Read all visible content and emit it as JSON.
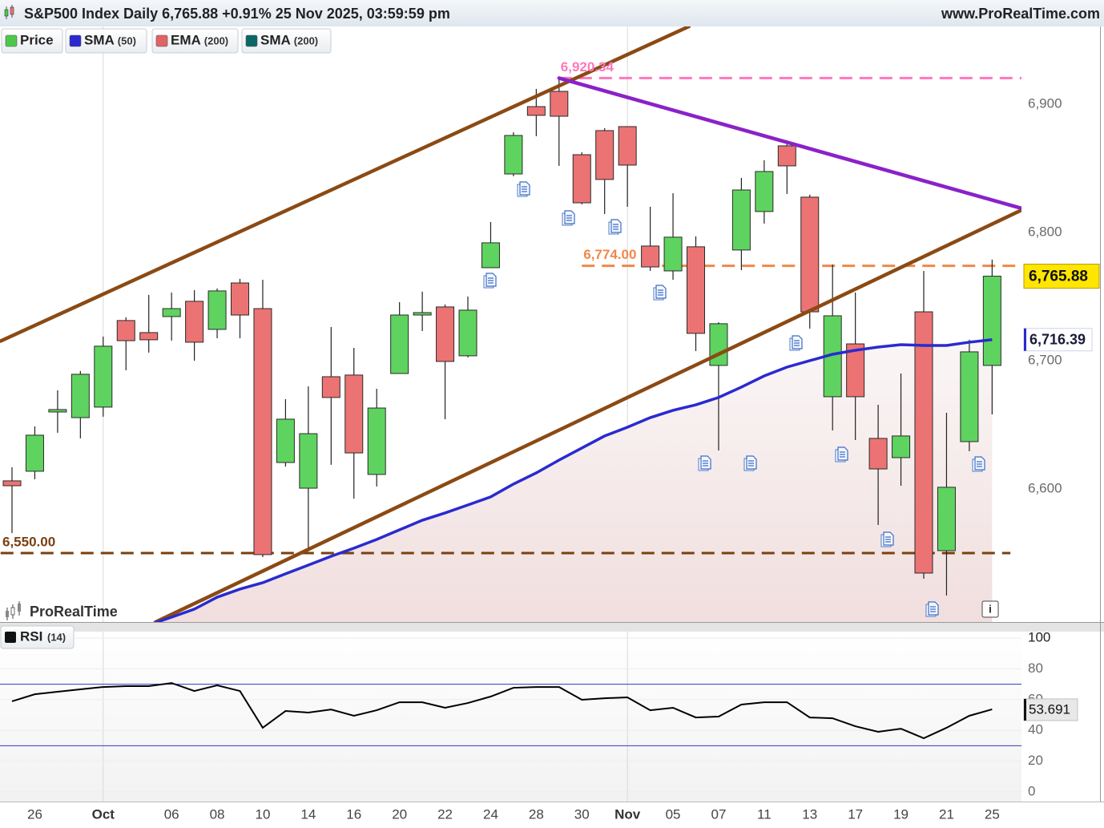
{
  "chart_data": [
    {
      "type": "candlestick",
      "title": "S&P500 Index Daily 6,765.88 +0.91% 25 Nov 2025, 03:59:59 pm",
      "source": "www.ProRealTime.com",
      "watermark": "ProRealTime",
      "legend": [
        {
          "name": "Price",
          "color": "#4cc94c"
        },
        {
          "name": "SMA",
          "param": "(50)",
          "color": "#2a2ad0"
        },
        {
          "name": "EMA",
          "param": "(200)",
          "color": "#e06464"
        },
        {
          "name": "SMA",
          "param": "(200)",
          "color": "#0b6767"
        }
      ],
      "categories": [
        null,
        "26",
        null,
        null,
        "Oct",
        null,
        null,
        "06",
        null,
        "08",
        null,
        "10",
        null,
        "14",
        null,
        "16",
        null,
        "20",
        null,
        "22",
        null,
        "24",
        null,
        "28",
        null,
        "30",
        null,
        "Nov",
        null,
        "05",
        null,
        "07",
        null,
        "11",
        null,
        "13",
        null,
        "17",
        null,
        "19",
        null,
        "21",
        null,
        "25"
      ],
      "open": [
        6606.3,
        6613.8,
        6660,
        6655.6,
        6663.8,
        6731.3,
        6721.9,
        6734.4,
        6746.3,
        6724.4,
        6760.6,
        6740.6,
        6620.6,
        6600.6,
        6687.5,
        6688.8,
        6611.3,
        6690,
        6735.6,
        6741.9,
        6703.8,
        6772.5,
        6845.6,
        6898.1,
        6910,
        6860.6,
        6879.4,
        6882.5,
        6789.4,
        6770,
        6788.8,
        6696.3,
        6786.3,
        6816.3,
        6867.5,
        6827.5,
        6671.9,
        6713.1,
        6639.4,
        6624.4,
        6738.1,
        6551.9,
        6636.9,
        6696.3
      ],
      "high": [
        6616.9,
        6648.8,
        6676.9,
        6691.9,
        6718.8,
        6733.8,
        6751.3,
        6753.1,
        6755,
        6756.3,
        6763.8,
        6763.1,
        6670,
        6680,
        6726.3,
        6710,
        6678.1,
        6745.6,
        6753.8,
        6743.8,
        6750,
        6808.1,
        6878.1,
        6911.9,
        6920.34,
        6862.5,
        6881.3,
        6882.5,
        6820,
        6830.6,
        6796.9,
        6730,
        6842.5,
        6856.3,
        6871.9,
        6829.4,
        6775,
        6753.1,
        6665.6,
        6690,
        6770,
        6659.4,
        6716.3,
        6778.8
      ],
      "low": [
        6565.6,
        6607.5,
        6643.8,
        6639.4,
        6656.3,
        6692.5,
        6706.3,
        6715.6,
        6700,
        6717.5,
        6717.5,
        6546.9,
        6617.5,
        6551.3,
        6618.8,
        6592.5,
        6601.9,
        6690,
        6723.1,
        6654.4,
        6702.5,
        6772.5,
        6843.8,
        6875,
        6851.9,
        6821.9,
        6814.4,
        6820,
        6770,
        6763.1,
        6707.5,
        6630,
        6770.6,
        6806.9,
        6830,
        6725,
        6645.6,
        6638.1,
        6571.9,
        6602.5,
        6530,
        6516.9,
        6629.4,
        6658.1
      ],
      "close": [
        6602.5,
        6641.9,
        6661.9,
        6689.4,
        6711.3,
        6715.6,
        6716.3,
        6740.6,
        6714.4,
        6754.4,
        6735.6,
        6548.8,
        6654.4,
        6643.1,
        6671.3,
        6628.1,
        6663.1,
        6735.6,
        6737.5,
        6699.4,
        6739.4,
        6791.9,
        6875.6,
        6891.3,
        6890.6,
        6823.1,
        6841.3,
        6852.5,
        6773.1,
        6796.3,
        6721.3,
        6728.8,
        6833.1,
        6847.5,
        6851.9,
        6738.1,
        6735,
        6671.9,
        6615.6,
        6641.3,
        6534.4,
        6601.3,
        6706.9,
        6765.88
      ],
      "last_label": "6,765.88",
      "up_color": "#5fd35f",
      "down_color": "#ec7373",
      "sma": {
        "color": "#2a2ad0",
        "label": "6,716.39",
        "values": [
          null,
          null,
          null,
          null,
          null,
          null,
          6494,
          6500,
          6506.3,
          6515.6,
          6521.9,
          6526.9,
          6533.8,
          6540.6,
          6547.5,
          6553.8,
          6560.6,
          6568.1,
          6575.6,
          6581.3,
          6587.5,
          6593.8,
          6603.8,
          6612.5,
          6622.5,
          6631.9,
          6641.3,
          6648.1,
          6655.6,
          6661.3,
          6665.6,
          6671.3,
          6679.4,
          6688.1,
          6695,
          6700,
          6705,
          6708.1,
          6710.6,
          6712.5,
          6711.9,
          6711.9,
          6714.4,
          6716.39
        ]
      },
      "ylim": [
        6496.25,
        6960.6
      ],
      "yticks": [
        {
          "value": 6600,
          "label": "6,600"
        },
        {
          "value": 6700,
          "label": "6,700"
        },
        {
          "value": 6800,
          "label": "6,800"
        },
        {
          "value": 6900,
          "label": "6,900"
        }
      ],
      "levels": [
        {
          "value": 6920.34,
          "label": "6,920.34",
          "color": "#ff77bb",
          "x": [
            24,
            44.3
          ]
        },
        {
          "value": 6774,
          "label": "6,774.00",
          "color": "#f08848",
          "x": [
            25,
            44.3
          ]
        },
        {
          "value": 6550,
          "label": "6,550.00",
          "color": "#7a3f10",
          "x": [
            -0.5,
            43.8
          ]
        }
      ],
      "trendlines": [
        {
          "x": [
            -0.5,
            29.7
          ],
          "y": [
            6715.3,
            6960.6
          ],
          "color": "#8b4a14"
        },
        {
          "x": [
            6.3,
            44.3
          ],
          "y": [
            6496.25,
            6817.5
          ],
          "color": "#8b4a14"
        },
        {
          "x": [
            24,
            44.3
          ],
          "y": [
            6920.34,
            6818.75
          ],
          "color": "#8a22c8"
        }
      ]
    },
    {
      "type": "line",
      "title": "RSI",
      "param": "(14)",
      "color": "#000000",
      "values": [
        58.9,
        63.5,
        65.1,
        66.7,
        68.2,
        68.8,
        68.8,
        70.8,
        65.6,
        69.3,
        65.6,
        41.7,
        52.6,
        51.6,
        53.6,
        49.5,
        53.1,
        58.3,
        58.3,
        54.7,
        57.8,
        62,
        67.7,
        68.2,
        68.2,
        59.9,
        60.9,
        61.5,
        53.1,
        54.7,
        48.4,
        49,
        56.8,
        58.3,
        58.3,
        48.4,
        47.9,
        42.7,
        39.1,
        41.1,
        34.9,
        41.7,
        49.5,
        53.691
      ],
      "ylim": [
        -6.25,
        104.2
      ],
      "yticks": [
        0,
        20,
        40,
        60,
        80,
        100
      ],
      "levels": [
        30,
        70
      ],
      "level_color": "#3636c8"
    }
  ]
}
